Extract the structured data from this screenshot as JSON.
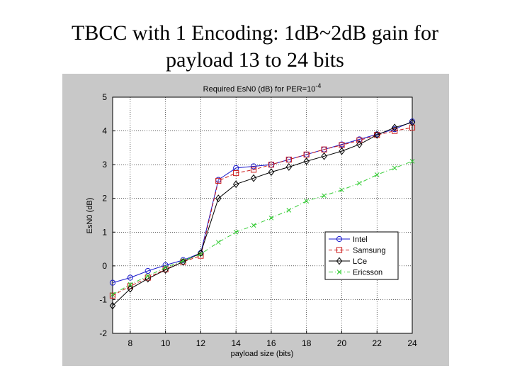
{
  "slide": {
    "title_line1": "TBCC with 1 Encoding: 1dB~2dB gain for",
    "title_line2": "payload 13 to 24 bits"
  },
  "chart_data": {
    "type": "line",
    "title": "Required EsN0 (dB) for PER=10",
    "title_superscript": "-4",
    "xlabel": "payload size (bits)",
    "ylabel": "EsN0 (dB)",
    "xlim": [
      7,
      24
    ],
    "ylim": [
      -2,
      5
    ],
    "xticks": [
      8,
      10,
      12,
      14,
      16,
      18,
      20,
      22,
      24
    ],
    "yticks": [
      -2,
      -1,
      0,
      1,
      2,
      3,
      4,
      5
    ],
    "grid": true,
    "legend_position": "lower-right",
    "series": [
      {
        "name": "Intel",
        "color": "#1a1acc",
        "marker": "circle",
        "dash": "solid",
        "x": [
          7,
          8,
          9,
          10,
          11,
          12,
          13,
          14,
          15,
          16,
          17,
          18,
          19,
          20,
          21,
          22,
          23,
          24
        ],
        "y": [
          -0.5,
          -0.35,
          -0.15,
          0.02,
          0.17,
          0.38,
          2.55,
          2.9,
          2.95,
          3.0,
          3.15,
          3.3,
          3.45,
          3.6,
          3.75,
          3.9,
          4.05,
          4.28
        ]
      },
      {
        "name": "Samsung",
        "color": "#cc1a1a",
        "marker": "square",
        "dash": "dashed",
        "x": [
          7,
          8,
          9,
          10,
          11,
          12,
          13,
          14,
          15,
          16,
          17,
          18,
          19,
          20,
          21,
          22,
          23,
          24
        ],
        "y": [
          -0.88,
          -0.6,
          -0.35,
          -0.1,
          0.12,
          0.3,
          2.52,
          2.75,
          2.85,
          3.0,
          3.15,
          3.3,
          3.45,
          3.58,
          3.72,
          3.88,
          4.0,
          4.1
        ]
      },
      {
        "name": "LCe",
        "color": "#000000",
        "marker": "diamond",
        "dash": "solid",
        "x": [
          7,
          8,
          9,
          10,
          11,
          12,
          13,
          14,
          15,
          16,
          17,
          18,
          19,
          20,
          21,
          22,
          23,
          24
        ],
        "y": [
          -1.18,
          -0.68,
          -0.38,
          -0.12,
          0.12,
          0.38,
          2.0,
          2.42,
          2.6,
          2.78,
          2.93,
          3.1,
          3.25,
          3.4,
          3.6,
          3.88,
          4.1,
          4.25
        ]
      },
      {
        "name": "Ericsson",
        "color": "#33cc33",
        "marker": "x",
        "dash": "dashdot",
        "x": [
          7,
          8,
          9,
          10,
          11,
          12,
          13,
          14,
          15,
          16,
          17,
          18,
          19,
          20,
          21,
          22,
          23,
          24
        ],
        "y": [
          -0.85,
          -0.55,
          -0.3,
          -0.05,
          0.15,
          0.35,
          0.7,
          1.0,
          1.2,
          1.42,
          1.65,
          1.92,
          2.08,
          2.25,
          2.45,
          2.7,
          2.9,
          3.1
        ]
      }
    ]
  }
}
